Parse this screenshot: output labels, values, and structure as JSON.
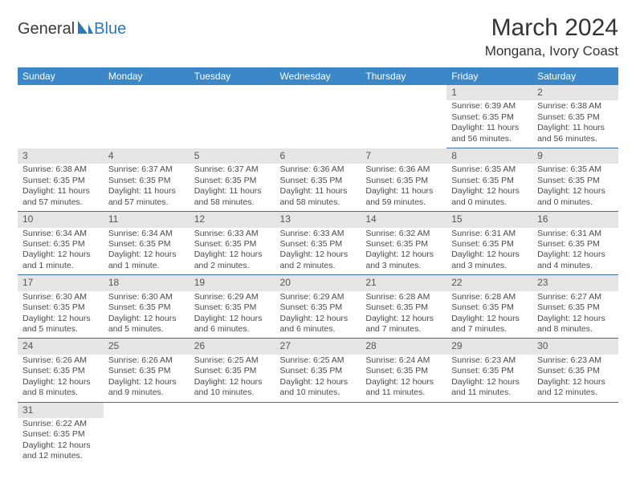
{
  "logo": {
    "general": "General",
    "blue": "Blue"
  },
  "title": "March 2024",
  "location": "Mongana, Ivory Coast",
  "colors": {
    "header_bg": "#3b87c8",
    "header_text": "#ffffff",
    "daynum_bg": "#e5e5e5",
    "row_divider": "#3b6fa3",
    "logo_blue": "#2a7ab8",
    "body_text": "#4a4a4a"
  },
  "weekdays": [
    "Sunday",
    "Monday",
    "Tuesday",
    "Wednesday",
    "Thursday",
    "Friday",
    "Saturday"
  ],
  "weeks": [
    {
      "days": [
        null,
        null,
        null,
        null,
        null,
        {
          "n": "1",
          "sr": "Sunrise: 6:39 AM",
          "ss": "Sunset: 6:35 PM",
          "dl1": "Daylight: 11 hours",
          "dl2": "and 56 minutes."
        },
        {
          "n": "2",
          "sr": "Sunrise: 6:38 AM",
          "ss": "Sunset: 6:35 PM",
          "dl1": "Daylight: 11 hours",
          "dl2": "and 56 minutes."
        }
      ]
    },
    {
      "days": [
        {
          "n": "3",
          "sr": "Sunrise: 6:38 AM",
          "ss": "Sunset: 6:35 PM",
          "dl1": "Daylight: 11 hours",
          "dl2": "and 57 minutes."
        },
        {
          "n": "4",
          "sr": "Sunrise: 6:37 AM",
          "ss": "Sunset: 6:35 PM",
          "dl1": "Daylight: 11 hours",
          "dl2": "and 57 minutes."
        },
        {
          "n": "5",
          "sr": "Sunrise: 6:37 AM",
          "ss": "Sunset: 6:35 PM",
          "dl1": "Daylight: 11 hours",
          "dl2": "and 58 minutes."
        },
        {
          "n": "6",
          "sr": "Sunrise: 6:36 AM",
          "ss": "Sunset: 6:35 PM",
          "dl1": "Daylight: 11 hours",
          "dl2": "and 58 minutes."
        },
        {
          "n": "7",
          "sr": "Sunrise: 6:36 AM",
          "ss": "Sunset: 6:35 PM",
          "dl1": "Daylight: 11 hours",
          "dl2": "and 59 minutes."
        },
        {
          "n": "8",
          "sr": "Sunrise: 6:35 AM",
          "ss": "Sunset: 6:35 PM",
          "dl1": "Daylight: 12 hours",
          "dl2": "and 0 minutes."
        },
        {
          "n": "9",
          "sr": "Sunrise: 6:35 AM",
          "ss": "Sunset: 6:35 PM",
          "dl1": "Daylight: 12 hours",
          "dl2": "and 0 minutes."
        }
      ]
    },
    {
      "days": [
        {
          "n": "10",
          "sr": "Sunrise: 6:34 AM",
          "ss": "Sunset: 6:35 PM",
          "dl1": "Daylight: 12 hours",
          "dl2": "and 1 minute."
        },
        {
          "n": "11",
          "sr": "Sunrise: 6:34 AM",
          "ss": "Sunset: 6:35 PM",
          "dl1": "Daylight: 12 hours",
          "dl2": "and 1 minute."
        },
        {
          "n": "12",
          "sr": "Sunrise: 6:33 AM",
          "ss": "Sunset: 6:35 PM",
          "dl1": "Daylight: 12 hours",
          "dl2": "and 2 minutes."
        },
        {
          "n": "13",
          "sr": "Sunrise: 6:33 AM",
          "ss": "Sunset: 6:35 PM",
          "dl1": "Daylight: 12 hours",
          "dl2": "and 2 minutes."
        },
        {
          "n": "14",
          "sr": "Sunrise: 6:32 AM",
          "ss": "Sunset: 6:35 PM",
          "dl1": "Daylight: 12 hours",
          "dl2": "and 3 minutes."
        },
        {
          "n": "15",
          "sr": "Sunrise: 6:31 AM",
          "ss": "Sunset: 6:35 PM",
          "dl1": "Daylight: 12 hours",
          "dl2": "and 3 minutes."
        },
        {
          "n": "16",
          "sr": "Sunrise: 6:31 AM",
          "ss": "Sunset: 6:35 PM",
          "dl1": "Daylight: 12 hours",
          "dl2": "and 4 minutes."
        }
      ]
    },
    {
      "days": [
        {
          "n": "17",
          "sr": "Sunrise: 6:30 AM",
          "ss": "Sunset: 6:35 PM",
          "dl1": "Daylight: 12 hours",
          "dl2": "and 5 minutes."
        },
        {
          "n": "18",
          "sr": "Sunrise: 6:30 AM",
          "ss": "Sunset: 6:35 PM",
          "dl1": "Daylight: 12 hours",
          "dl2": "and 5 minutes."
        },
        {
          "n": "19",
          "sr": "Sunrise: 6:29 AM",
          "ss": "Sunset: 6:35 PM",
          "dl1": "Daylight: 12 hours",
          "dl2": "and 6 minutes."
        },
        {
          "n": "20",
          "sr": "Sunrise: 6:29 AM",
          "ss": "Sunset: 6:35 PM",
          "dl1": "Daylight: 12 hours",
          "dl2": "and 6 minutes."
        },
        {
          "n": "21",
          "sr": "Sunrise: 6:28 AM",
          "ss": "Sunset: 6:35 PM",
          "dl1": "Daylight: 12 hours",
          "dl2": "and 7 minutes."
        },
        {
          "n": "22",
          "sr": "Sunrise: 6:28 AM",
          "ss": "Sunset: 6:35 PM",
          "dl1": "Daylight: 12 hours",
          "dl2": "and 7 minutes."
        },
        {
          "n": "23",
          "sr": "Sunrise: 6:27 AM",
          "ss": "Sunset: 6:35 PM",
          "dl1": "Daylight: 12 hours",
          "dl2": "and 8 minutes."
        }
      ]
    },
    {
      "days": [
        {
          "n": "24",
          "sr": "Sunrise: 6:26 AM",
          "ss": "Sunset: 6:35 PM",
          "dl1": "Daylight: 12 hours",
          "dl2": "and 8 minutes."
        },
        {
          "n": "25",
          "sr": "Sunrise: 6:26 AM",
          "ss": "Sunset: 6:35 PM",
          "dl1": "Daylight: 12 hours",
          "dl2": "and 9 minutes."
        },
        {
          "n": "26",
          "sr": "Sunrise: 6:25 AM",
          "ss": "Sunset: 6:35 PM",
          "dl1": "Daylight: 12 hours",
          "dl2": "and 10 minutes."
        },
        {
          "n": "27",
          "sr": "Sunrise: 6:25 AM",
          "ss": "Sunset: 6:35 PM",
          "dl1": "Daylight: 12 hours",
          "dl2": "and 10 minutes."
        },
        {
          "n": "28",
          "sr": "Sunrise: 6:24 AM",
          "ss": "Sunset: 6:35 PM",
          "dl1": "Daylight: 12 hours",
          "dl2": "and 11 minutes."
        },
        {
          "n": "29",
          "sr": "Sunrise: 6:23 AM",
          "ss": "Sunset: 6:35 PM",
          "dl1": "Daylight: 12 hours",
          "dl2": "and 11 minutes."
        },
        {
          "n": "30",
          "sr": "Sunrise: 6:23 AM",
          "ss": "Sunset: 6:35 PM",
          "dl1": "Daylight: 12 hours",
          "dl2": "and 12 minutes."
        }
      ]
    },
    {
      "days": [
        {
          "n": "31",
          "sr": "Sunrise: 6:22 AM",
          "ss": "Sunset: 6:35 PM",
          "dl1": "Daylight: 12 hours",
          "dl2": "and 12 minutes."
        },
        null,
        null,
        null,
        null,
        null,
        null
      ]
    }
  ]
}
